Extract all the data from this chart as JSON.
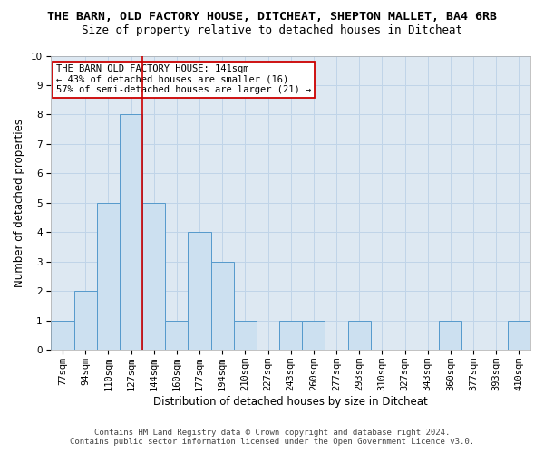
{
  "title": "THE BARN, OLD FACTORY HOUSE, DITCHEAT, SHEPTON MALLET, BA4 6RB",
  "subtitle": "Size of property relative to detached houses in Ditcheat",
  "xlabel": "Distribution of detached houses by size in Ditcheat",
  "ylabel": "Number of detached properties",
  "bar_labels": [
    "77sqm",
    "94sqm",
    "110sqm",
    "127sqm",
    "144sqm",
    "160sqm",
    "177sqm",
    "194sqm",
    "210sqm",
    "227sqm",
    "243sqm",
    "260sqm",
    "277sqm",
    "293sqm",
    "310sqm",
    "327sqm",
    "343sqm",
    "360sqm",
    "377sqm",
    "393sqm",
    "410sqm"
  ],
  "bar_values": [
    1,
    2,
    5,
    8,
    5,
    1,
    4,
    3,
    1,
    0,
    1,
    1,
    0,
    1,
    0,
    0,
    0,
    1,
    0,
    0,
    1
  ],
  "bar_color": "#cce0f0",
  "bar_edgecolor": "#5599cc",
  "vline_index": 4,
  "vline_color": "#cc0000",
  "ylim": [
    0,
    10
  ],
  "yticks": [
    0,
    1,
    2,
    3,
    4,
    5,
    6,
    7,
    8,
    9,
    10
  ],
  "annotation_text": "THE BARN OLD FACTORY HOUSE: 141sqm\n← 43% of detached houses are smaller (16)\n57% of semi-detached houses are larger (21) →",
  "annotation_box_facecolor": "#ffffff",
  "annotation_box_edgecolor": "#cc0000",
  "footnote": "Contains HM Land Registry data © Crown copyright and database right 2024.\nContains public sector information licensed under the Open Government Licence v3.0.",
  "bg_color": "#ffffff",
  "axes_bg_color": "#dde8f2",
  "grid_color": "#c0d4e8",
  "title_fontsize": 9.5,
  "subtitle_fontsize": 9,
  "axis_label_fontsize": 8.5,
  "tick_fontsize": 7.5,
  "annotation_fontsize": 7.5,
  "footnote_fontsize": 6.5
}
